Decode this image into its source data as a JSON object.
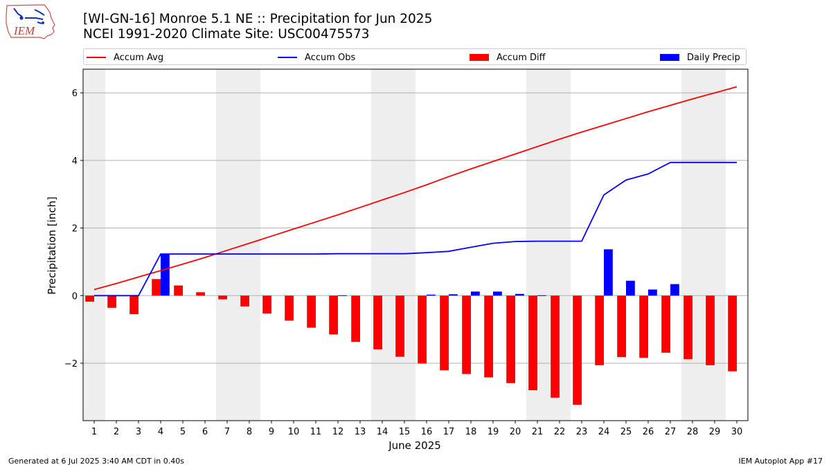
{
  "header": {
    "title_line1": "[WI-GN-16] Monroe 5.1 NE :: Precipitation for Jun 2025",
    "title_line2": "NCEI 1991-2020 Climate Site: USC00475573",
    "logo_text": "IEM"
  },
  "footer": {
    "left": "Generated at 6 Jul 2025 3:40 AM CDT in 0.40s",
    "right": "IEM Autoplot App #17"
  },
  "legend": [
    {
      "label": "Accum Avg",
      "color": "#ff0000",
      "kind": "line"
    },
    {
      "label": "Accum Obs",
      "color": "#0000ff",
      "kind": "line"
    },
    {
      "label": "Accum Diff",
      "color": "#ff0000",
      "kind": "patch"
    },
    {
      "label": "Daily Precip",
      "color": "#0000ff",
      "kind": "patch"
    }
  ],
  "chart_data": {
    "type": "bar",
    "xlabel": "June 2025",
    "ylabel": "Precipitation [inch]",
    "x": [
      1,
      2,
      3,
      4,
      5,
      6,
      7,
      8,
      9,
      10,
      11,
      12,
      13,
      14,
      15,
      16,
      17,
      18,
      19,
      20,
      21,
      22,
      23,
      24,
      25,
      26,
      27,
      28,
      29,
      30
    ],
    "xlim": [
      0.5,
      30.5
    ],
    "ylim": [
      -3.7,
      6.7
    ],
    "yticks": [
      -2,
      0,
      2,
      4,
      6
    ],
    "ytick_labels": [
      "−2",
      "0",
      "2",
      "4",
      "6"
    ],
    "grid": "horizontal",
    "legend_position": "top, above plot",
    "shaded_days": [
      1,
      7,
      8,
      14,
      15,
      21,
      22,
      28,
      29
    ],
    "shade_color": "#eeeeee",
    "series": [
      {
        "name": "Accum Avg",
        "kind": "line",
        "color": "#ff0000",
        "values": [
          0.18,
          0.36,
          0.55,
          0.74,
          0.93,
          1.13,
          1.34,
          1.55,
          1.76,
          1.97,
          2.18,
          2.39,
          2.61,
          2.83,
          3.05,
          3.28,
          3.52,
          3.75,
          3.97,
          4.19,
          4.41,
          4.63,
          4.84,
          5.04,
          5.24,
          5.44,
          5.63,
          5.82,
          6.0,
          6.18
        ]
      },
      {
        "name": "Accum Obs",
        "kind": "line",
        "color": "#0000ff",
        "values": [
          0.0,
          0.0,
          0.0,
          1.23,
          1.23,
          1.23,
          1.23,
          1.23,
          1.23,
          1.23,
          1.23,
          1.24,
          1.24,
          1.24,
          1.24,
          1.27,
          1.31,
          1.43,
          1.55,
          1.6,
          1.61,
          1.61,
          1.61,
          2.98,
          3.42,
          3.6,
          3.94,
          3.94,
          3.94,
          3.94
        ]
      },
      {
        "name": "Accum Diff",
        "kind": "bar",
        "color": "#ff0000",
        "values": [
          -0.18,
          -0.36,
          -0.55,
          0.49,
          0.3,
          0.1,
          -0.11,
          -0.32,
          -0.53,
          -0.74,
          -0.95,
          -1.15,
          -1.37,
          -1.59,
          -1.81,
          -2.01,
          -2.21,
          -2.32,
          -2.42,
          -2.59,
          -2.8,
          -3.02,
          -3.23,
          -2.06,
          -1.82,
          -1.84,
          -1.69,
          -1.88,
          -2.06,
          -2.24
        ]
      },
      {
        "name": "Daily Precip",
        "kind": "bar",
        "color": "#0000ff",
        "values": [
          0,
          0,
          0,
          1.23,
          0,
          0,
          0,
          0,
          0,
          0,
          0,
          0.01,
          0,
          0,
          0,
          0.03,
          0.04,
          0.12,
          0.12,
          0.05,
          0.01,
          0,
          0,
          1.37,
          0.44,
          0.18,
          0.34,
          0,
          0,
          0
        ]
      }
    ]
  }
}
